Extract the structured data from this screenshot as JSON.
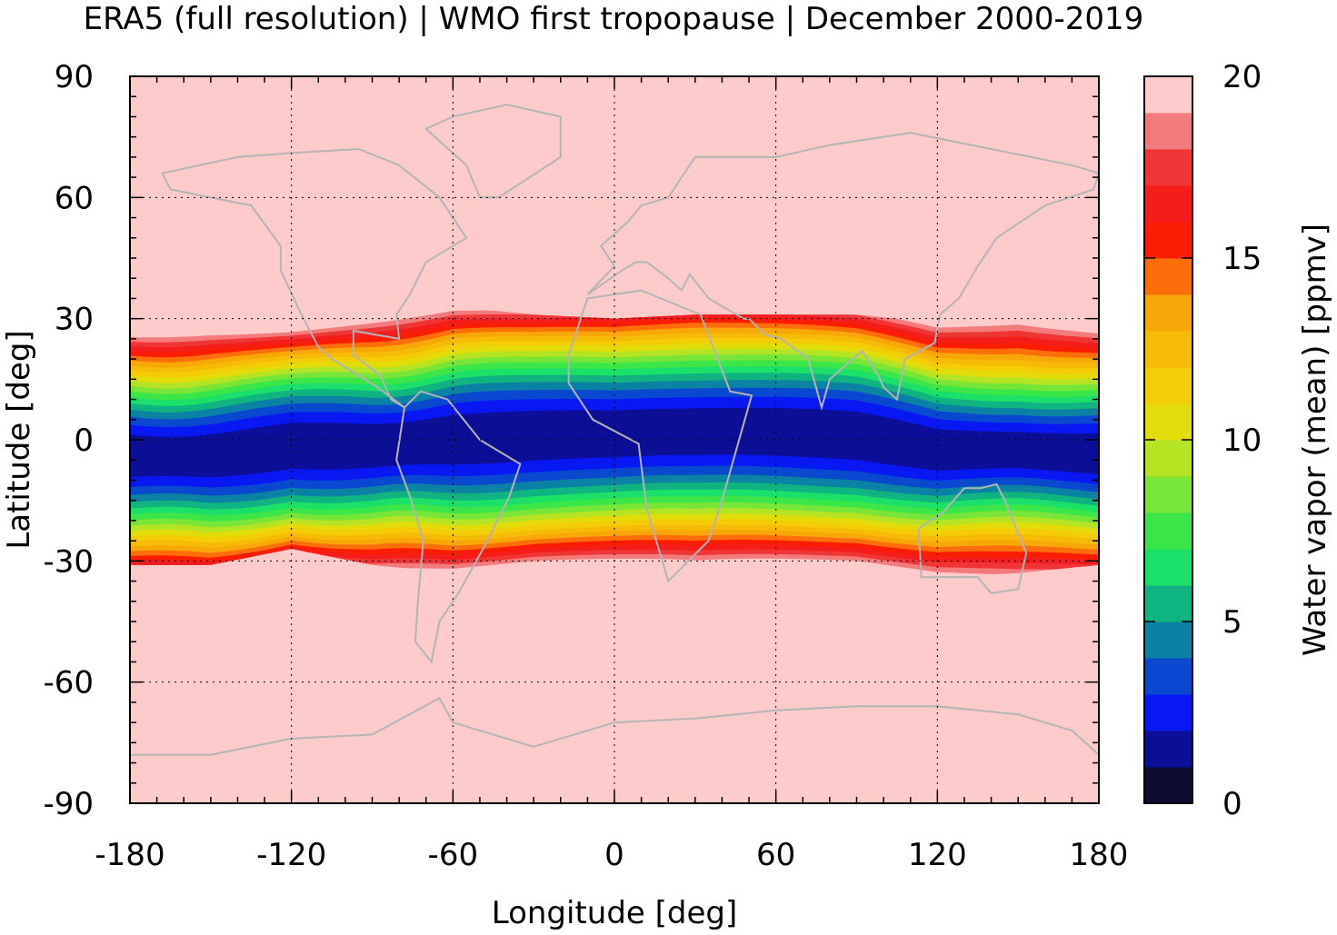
{
  "chart_data": {
    "type": "heatmap",
    "title": "ERA5 (full resolution) | WMO first tropopause | December 2000-2019",
    "xlabel": "Longitude [deg]",
    "ylabel": "Latitude [deg]",
    "colorbar_label": "Water vapor (mean) [ppmv]",
    "xlim": [
      -180,
      180
    ],
    "ylim": [
      -90,
      90
    ],
    "x_ticks": [
      -180,
      -120,
      -60,
      0,
      60,
      120,
      180
    ],
    "x_tick_labels": [
      "-180",
      "-120",
      "-60",
      "0",
      "60",
      "120",
      "180"
    ],
    "y_ticks": [
      90,
      60,
      30,
      0,
      -30,
      -60,
      -90
    ],
    "y_tick_labels": [
      "90",
      "60",
      "30",
      "0",
      "-30",
      "-60",
      "-90"
    ],
    "colorbar_range": [
      0,
      20
    ],
    "colorbar_ticks": [
      0,
      5,
      10,
      15,
      20
    ],
    "colorbar_tick_labels": [
      "0",
      "5",
      "10",
      "15",
      "20"
    ],
    "grid": true,
    "levels": [
      {
        "from": 0,
        "to": 1,
        "color": "#0b0c30"
      },
      {
        "from": 1,
        "to": 2,
        "color": "#0b0f98"
      },
      {
        "from": 2,
        "to": 3,
        "color": "#0818f2"
      },
      {
        "from": 3,
        "to": 4,
        "color": "#0a48cf"
      },
      {
        "from": 4,
        "to": 5,
        "color": "#0a82a4"
      },
      {
        "from": 5,
        "to": 6,
        "color": "#10b481"
      },
      {
        "from": 6,
        "to": 7,
        "color": "#1ce067"
      },
      {
        "from": 7,
        "to": 8,
        "color": "#3ae648"
      },
      {
        "from": 8,
        "to": 9,
        "color": "#78e637"
      },
      {
        "from": 9,
        "to": 10,
        "color": "#b4e423"
      },
      {
        "from": 10,
        "to": 11,
        "color": "#e4dc0a"
      },
      {
        "from": 11,
        "to": 12,
        "color": "#f3cd06"
      },
      {
        "from": 12,
        "to": 13,
        "color": "#f6bb06"
      },
      {
        "from": 13,
        "to": 14,
        "color": "#f8a708"
      },
      {
        "from": 14,
        "to": 15,
        "color": "#fb6e0a"
      },
      {
        "from": 15,
        "to": 16,
        "color": "#fb1c04"
      },
      {
        "from": 16,
        "to": 17,
        "color": "#f51c1c"
      },
      {
        "from": 17,
        "to": 18,
        "color": "#f03535"
      },
      {
        "from": 18,
        "to": 19,
        "color": "#f47b7b"
      },
      {
        "from": 19,
        "to": 20,
        "color": "#fecaca"
      }
    ],
    "field_description_points": {
      "lon": [
        -180,
        -150,
        -120,
        -90,
        -60,
        -30,
        0,
        30,
        60,
        90,
        120,
        150,
        180
      ],
      "north_edge_lat": [
        30,
        31,
        31,
        32,
        33,
        31,
        30,
        31,
        31,
        31,
        29,
        32,
        31
      ],
      "south_edge_lat": [
        -31,
        -31,
        -27,
        -31,
        -33,
        -33,
        -34,
        -35,
        -34,
        -33,
        -34,
        -33,
        -31
      ]
    },
    "background_color": "#fecaca",
    "coastline_color": "#b4b4b4"
  }
}
